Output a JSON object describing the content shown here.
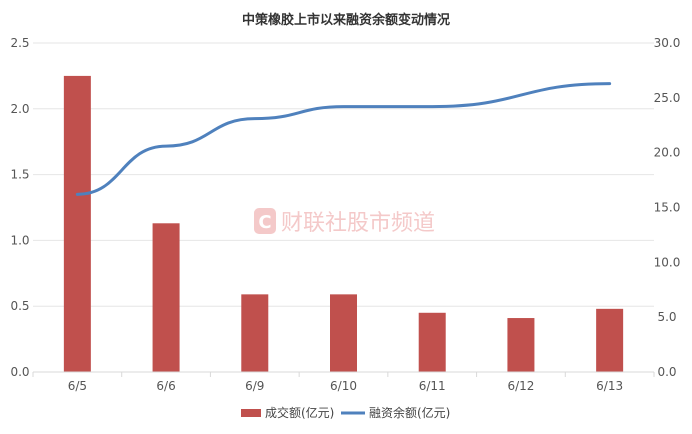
{
  "chart_data": {
    "type": "bar",
    "title": "中策橡胶上市以来融资余额变动情况",
    "categories": [
      "6/5",
      "6/6",
      "6/9",
      "6/10",
      "6/11",
      "6/12",
      "6/13"
    ],
    "series": [
      {
        "name": "成交额(亿元)",
        "type": "bar",
        "axis": "left",
        "color": "#c0504d",
        "values": [
          2.25,
          1.13,
          0.59,
          0.59,
          0.45,
          0.41,
          0.48
        ]
      },
      {
        "name": "融资余额(亿元)",
        "type": "line",
        "axis": "right",
        "color": "#4f81bd",
        "values": [
          16.2,
          20.6,
          23.1,
          24.2,
          24.2,
          null,
          26.3
        ]
      }
    ],
    "y_left": {
      "min": 0,
      "max": 2.5,
      "ticks": [
        "0.0",
        "0.5",
        "1.0",
        "1.5",
        "2.0",
        "2.5"
      ]
    },
    "y_right": {
      "min": 0,
      "max": 30,
      "ticks": [
        "0.0",
        "5.0",
        "10.0",
        "15.0",
        "20.0",
        "25.0",
        "30.0"
      ]
    },
    "grid": true,
    "legend_position": "bottom"
  },
  "watermark": {
    "text": "财联社股市频道",
    "logo_letter": "C"
  }
}
